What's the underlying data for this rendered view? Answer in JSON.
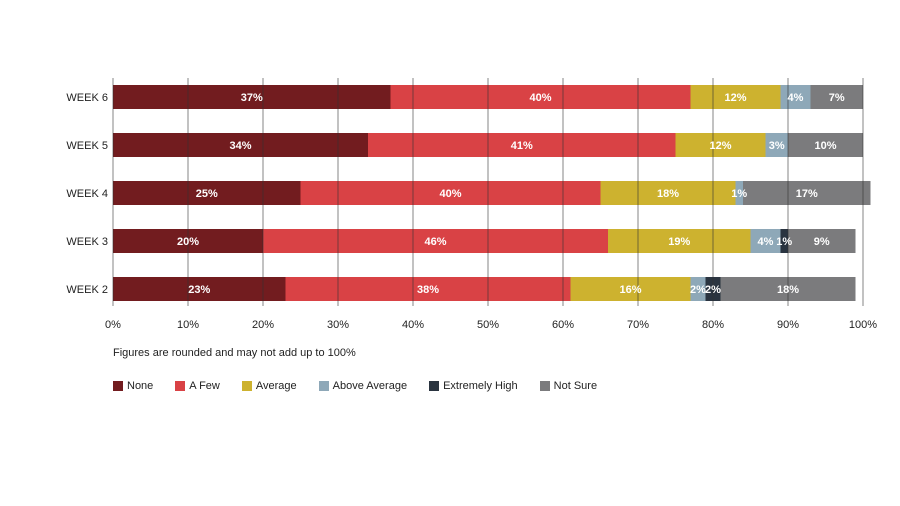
{
  "chart_data": {
    "type": "bar",
    "orientation": "horizontal",
    "stacked": true,
    "title": "",
    "xlabel": "",
    "ylabel": "",
    "xlim": [
      0,
      100
    ],
    "x_ticks": [
      "0%",
      "10%",
      "20%",
      "30%",
      "40%",
      "50%",
      "60%",
      "70%",
      "80%",
      "90%",
      "100%"
    ],
    "grid": "vertical",
    "legend_position": "bottom-left",
    "categories": [
      "WEEK 6",
      "WEEK 5",
      "WEEK 4",
      "WEEK 3",
      "WEEK 2"
    ],
    "series": [
      {
        "name": "None",
        "color": "#721c1f",
        "values": [
          37,
          34,
          25,
          20,
          23
        ]
      },
      {
        "name": "A Few",
        "color": "#d94245",
        "values": [
          40,
          41,
          40,
          46,
          38
        ]
      },
      {
        "name": "Average",
        "color": "#cdb22f",
        "values": [
          12,
          12,
          18,
          19,
          16
        ]
      },
      {
        "name": "Above Average",
        "color": "#8ea8b8",
        "values": [
          4,
          3,
          1,
          4,
          2
        ]
      },
      {
        "name": "Extremely High",
        "color": "#2a3440",
        "values": [
          0,
          0,
          0,
          1,
          2
        ]
      },
      {
        "name": "Not Sure",
        "color": "#7b7b7d",
        "values": [
          7,
          10,
          17,
          9,
          18
        ]
      }
    ],
    "note": "Figures are rounded and may not add up to 100%"
  }
}
